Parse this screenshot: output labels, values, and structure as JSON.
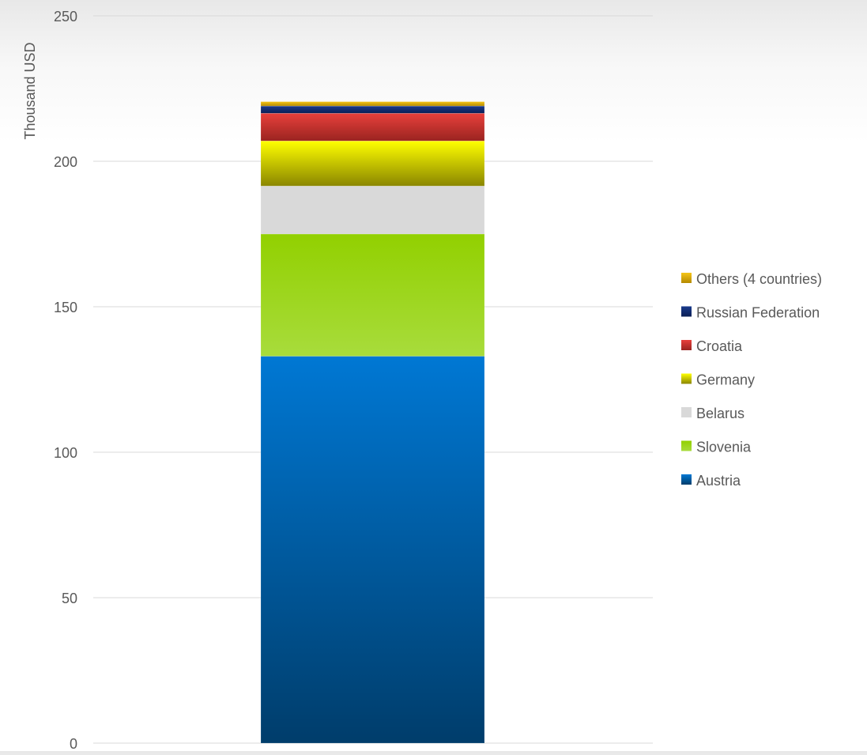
{
  "chart_data": {
    "type": "bar",
    "stacked": true,
    "ylabel": "Thousand USD",
    "ylim": [
      0,
      250
    ],
    "yticks": [
      0,
      50,
      100,
      150,
      200,
      250
    ],
    "grid": true,
    "legend_position": "right",
    "categories": [
      ""
    ],
    "series": [
      {
        "name": "Austria",
        "values": [
          133
        ],
        "color": "#0078d4",
        "color_dark": "#003d6b"
      },
      {
        "name": "Slovenia",
        "values": [
          42
        ],
        "color": "#92d000",
        "color_dark": "#a8dc3c"
      },
      {
        "name": "Belarus",
        "values": [
          16.5
        ],
        "color": "#d9d9d9",
        "color_dark": "#d9d9d9"
      },
      {
        "name": "Germany",
        "values": [
          15.5
        ],
        "color": "#ffff00",
        "color_dark": "#8a8600"
      },
      {
        "name": "Croatia",
        "values": [
          9.5
        ],
        "color": "#e8403c",
        "color_dark": "#9a2420"
      },
      {
        "name": "Russian Federation",
        "values": [
          2.5
        ],
        "color": "#1a3a8c",
        "color_dark": "#0a1f55"
      },
      {
        "name": "Others (4 countries)",
        "values": [
          1.5
        ],
        "color": "#f5c518",
        "color_dark": "#b58a00"
      }
    ]
  }
}
